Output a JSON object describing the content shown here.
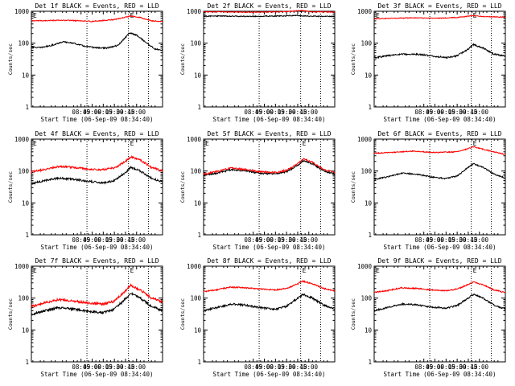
{
  "colors": {
    "events": "#000000",
    "lld": "#ff0000",
    "axes": "#000000",
    "background": "#ffffff"
  },
  "chart_data": [
    {
      "type": "line",
      "title": "Det 1f BLACK = Events, RED = LLD",
      "xlabel": "Start Time (06-Sep-09 08:34:40)",
      "ylabel": "Counts/sec",
      "yscale": "log",
      "ylim": [
        1,
        1000
      ],
      "xlim": [
        "07:38",
        "10:35"
      ],
      "x_ticks": [
        "08:45",
        "09:00",
        "09:15",
        "09:30",
        "09:45",
        "10:00"
      ],
      "y_ticks": [
        "1",
        "10",
        "100",
        "1000"
      ],
      "markers": [
        {
          "time": "08:53",
          "label": ""
        },
        {
          "time": "09:49",
          "label": "E"
        },
        {
          "time": "10:16",
          "label": ""
        }
      ],
      "corner_label": "E",
      "series": [
        {
          "name": "Events",
          "color": "#000000",
          "noise": 0.02,
          "x": [
            "07:38",
            "07:50",
            "08:05",
            "08:20",
            "08:35",
            "08:50",
            "09:05",
            "09:20",
            "09:35",
            "09:45",
            "09:50",
            "10:00",
            "10:15",
            "10:25",
            "10:35"
          ],
          "y": [
            75,
            72,
            85,
            110,
            100,
            80,
            72,
            70,
            85,
            150,
            210,
            180,
            95,
            65,
            60
          ]
        },
        {
          "name": "LLD",
          "color": "#ff0000",
          "noise": 0.015,
          "x": [
            "07:38",
            "08:00",
            "08:30",
            "09:00",
            "09:30",
            "09:45",
            "09:52",
            "10:05",
            "10:20",
            "10:35"
          ],
          "y": [
            500,
            510,
            520,
            480,
            550,
            650,
            720,
            640,
            500,
            480
          ]
        }
      ]
    },
    {
      "type": "line",
      "title": "Det 2f BLACK = Events, RED = LLD",
      "xlabel": "Start Time (06-Sep-09 08:34:40)",
      "ylabel": "Counts/sec",
      "yscale": "log",
      "ylim": [
        1,
        1000
      ],
      "xlim": [
        "07:38",
        "10:35"
      ],
      "x_ticks": [
        "08:45",
        "09:00",
        "09:15",
        "09:30",
        "09:45",
        "10:00"
      ],
      "y_ticks": [
        "1",
        "10",
        "100",
        "1000"
      ],
      "markers": [
        {
          "time": "08:53",
          "label": ""
        },
        {
          "time": "09:49",
          "label": ""
        },
        {
          "time": "10:16",
          "label": ""
        }
      ],
      "corner_label": "",
      "series": [
        {
          "name": "Events",
          "color": "#000000",
          "noise": 0.015,
          "x": [
            "07:38",
            "08:00",
            "08:30",
            "09:00",
            "09:30",
            "09:45",
            "10:00",
            "10:35"
          ],
          "y": [
            700,
            710,
            690,
            700,
            720,
            740,
            700,
            690
          ]
        },
        {
          "name": "LLD",
          "color": "#ff0000",
          "noise": 0.012,
          "x": [
            "07:38",
            "08:00",
            "08:30",
            "09:00",
            "09:30",
            "09:50",
            "10:05",
            "10:35"
          ],
          "y": [
            950,
            960,
            940,
            950,
            980,
            1050,
            960,
            950
          ]
        }
      ]
    },
    {
      "type": "line",
      "title": "Det 3f BLACK = Events, RED = LLD",
      "xlabel": "Start Time (06-Sep-09 08:34:40)",
      "ylabel": "Counts/sec",
      "yscale": "log",
      "ylim": [
        1,
        1000
      ],
      "xlim": [
        "07:38",
        "10:35"
      ],
      "x_ticks": [
        "08:45",
        "09:00",
        "09:15",
        "09:30",
        "09:45",
        "10:00"
      ],
      "y_ticks": [
        "1",
        "10",
        "100",
        "1000"
      ],
      "markers": [
        {
          "time": "08:53",
          "label": ""
        },
        {
          "time": "09:49",
          "label": "E"
        },
        {
          "time": "10:16",
          "label": ""
        }
      ],
      "corner_label": "E",
      "series": [
        {
          "name": "Events",
          "color": "#000000",
          "noise": 0.025,
          "x": [
            "07:38",
            "07:55",
            "08:15",
            "08:35",
            "08:55",
            "09:15",
            "09:30",
            "09:45",
            "09:52",
            "10:05",
            "10:20",
            "10:35"
          ],
          "y": [
            35,
            40,
            45,
            45,
            40,
            35,
            40,
            65,
            90,
            70,
            45,
            40
          ]
        },
        {
          "name": "LLD",
          "color": "#ff0000",
          "noise": 0.012,
          "x": [
            "07:38",
            "08:00",
            "08:30",
            "09:00",
            "09:30",
            "09:50",
            "10:10",
            "10:35"
          ],
          "y": [
            580,
            600,
            620,
            600,
            640,
            720,
            680,
            650
          ]
        }
      ]
    },
    {
      "type": "line",
      "title": "Det 4f BLACK = Events, RED = LLD",
      "xlabel": "Start Time (06-Sep-09 08:34:40)",
      "ylabel": "Counts/sec",
      "yscale": "log",
      "ylim": [
        1,
        1000
      ],
      "xlim": [
        "07:38",
        "10:35"
      ],
      "x_ticks": [
        "08:45",
        "09:00",
        "09:15",
        "09:30",
        "09:45",
        "10:00"
      ],
      "y_ticks": [
        "1",
        "10",
        "100",
        "1000"
      ],
      "markers": [
        {
          "time": "08:53",
          "label": ""
        },
        {
          "time": "09:49",
          "label": "E"
        },
        {
          "time": "10:16",
          "label": ""
        }
      ],
      "corner_label": "E",
      "series": [
        {
          "name": "Events",
          "color": "#000000",
          "noise": 0.03,
          "x": [
            "07:38",
            "07:55",
            "08:15",
            "08:35",
            "08:55",
            "09:15",
            "09:30",
            "09:45",
            "09:52",
            "10:05",
            "10:20",
            "10:35"
          ],
          "y": [
            40,
            50,
            60,
            55,
            48,
            42,
            50,
            90,
            130,
            100,
            60,
            45
          ]
        },
        {
          "name": "LLD",
          "color": "#ff0000",
          "noise": 0.03,
          "x": [
            "07:38",
            "07:55",
            "08:15",
            "08:35",
            "08:55",
            "09:15",
            "09:30",
            "09:45",
            "09:52",
            "10:05",
            "10:20",
            "10:35"
          ],
          "y": [
            95,
            110,
            140,
            130,
            115,
            110,
            125,
            200,
            280,
            220,
            130,
            100
          ]
        }
      ]
    },
    {
      "type": "line",
      "title": "Det 5f BLACK = Events, RED = LLD",
      "xlabel": "Start Time (06-Sep-09 08:34:40)",
      "ylabel": "Counts/sec",
      "yscale": "log",
      "ylim": [
        1,
        1000
      ],
      "xlim": [
        "07:38",
        "10:35"
      ],
      "x_ticks": [
        "08:45",
        "09:00",
        "09:15",
        "09:30",
        "09:45",
        "10:00"
      ],
      "y_ticks": [
        "1",
        "10",
        "100",
        "1000"
      ],
      "markers": [
        {
          "time": "08:53",
          "label": ""
        },
        {
          "time": "09:49",
          "label": "E"
        },
        {
          "time": "10:16",
          "label": ""
        }
      ],
      "corner_label": "E",
      "series": [
        {
          "name": "Events",
          "color": "#000000",
          "noise": 0.025,
          "x": [
            "07:38",
            "07:55",
            "08:15",
            "08:35",
            "08:55",
            "09:15",
            "09:30",
            "09:45",
            "09:52",
            "10:05",
            "10:20",
            "10:35"
          ],
          "y": [
            75,
            85,
            110,
            100,
            85,
            80,
            95,
            150,
            210,
            170,
            100,
            80
          ]
        },
        {
          "name": "LLD",
          "color": "#ff0000",
          "noise": 0.025,
          "x": [
            "07:38",
            "07:55",
            "08:15",
            "08:35",
            "08:55",
            "09:15",
            "09:30",
            "09:45",
            "09:52",
            "10:05",
            "10:20",
            "10:35"
          ],
          "y": [
            80,
            95,
            125,
            110,
            95,
            90,
            105,
            170,
            240,
            190,
            110,
            90
          ]
        }
      ]
    },
    {
      "type": "line",
      "title": "Det 6f BLACK = Events, RED = LLD",
      "xlabel": "Start Time (06-Sep-09 08:34:40)",
      "ylabel": "Counts/sec",
      "yscale": "log",
      "ylim": [
        1,
        1000
      ],
      "xlim": [
        "07:38",
        "10:35"
      ],
      "x_ticks": [
        "08:45",
        "09:00",
        "09:15",
        "09:30",
        "09:45",
        "10:00"
      ],
      "y_ticks": [
        "1",
        "10",
        "100",
        "1000"
      ],
      "markers": [
        {
          "time": "08:53",
          "label": ""
        },
        {
          "time": "09:49",
          "label": "E"
        },
        {
          "time": "10:16",
          "label": ""
        }
      ],
      "corner_label": "",
      "series": [
        {
          "name": "Events",
          "color": "#000000",
          "noise": 0.02,
          "x": [
            "07:38",
            "07:55",
            "08:15",
            "08:35",
            "08:55",
            "09:15",
            "09:30",
            "09:45",
            "09:52",
            "10:05",
            "10:20",
            "10:35"
          ],
          "y": [
            55,
            65,
            85,
            80,
            65,
            58,
            70,
            130,
            170,
            130,
            80,
            60
          ]
        },
        {
          "name": "LLD",
          "color": "#ff0000",
          "noise": 0.015,
          "x": [
            "07:38",
            "08:00",
            "08:30",
            "09:00",
            "09:30",
            "09:45",
            "09:52",
            "10:10",
            "10:35"
          ],
          "y": [
            360,
            380,
            420,
            380,
            400,
            500,
            580,
            450,
            330
          ]
        }
      ]
    },
    {
      "type": "line",
      "title": "Det 7f BLACK = Events, RED = LLD",
      "xlabel": "Start Time (06-Sep-09 08:34:40)",
      "ylabel": "Counts/sec",
      "yscale": "log",
      "ylim": [
        1,
        1000
      ],
      "xlim": [
        "07:38",
        "10:35"
      ],
      "x_ticks": [
        "08:45",
        "09:00",
        "09:15",
        "09:30",
        "09:45",
        "10:00"
      ],
      "y_ticks": [
        "1",
        "10",
        "100",
        "1000"
      ],
      "markers": [
        {
          "time": "08:53",
          "label": ""
        },
        {
          "time": "09:49",
          "label": "E"
        },
        {
          "time": "10:16",
          "label": ""
        }
      ],
      "corner_label": "E",
      "series": [
        {
          "name": "Events",
          "color": "#000000",
          "noise": 0.035,
          "x": [
            "07:38",
            "07:55",
            "08:15",
            "08:35",
            "08:55",
            "09:15",
            "09:30",
            "09:45",
            "09:52",
            "10:05",
            "10:20",
            "10:35"
          ],
          "y": [
            30,
            40,
            50,
            45,
            38,
            35,
            45,
            95,
            140,
            100,
            55,
            40
          ]
        },
        {
          "name": "LLD",
          "color": "#ff0000",
          "noise": 0.035,
          "x": [
            "07:38",
            "07:55",
            "08:15",
            "08:35",
            "08:55",
            "09:15",
            "09:30",
            "09:45",
            "09:52",
            "10:05",
            "10:20",
            "10:35"
          ],
          "y": [
            55,
            70,
            90,
            80,
            70,
            65,
            80,
            170,
            250,
            180,
            100,
            75
          ]
        }
      ]
    },
    {
      "type": "line",
      "title": "Det 8f BLACK = Events, RED = LLD",
      "xlabel": "Start Time (06-Sep-09 08:34:40)",
      "ylabel": "Counts/sec",
      "yscale": "log",
      "ylim": [
        1,
        1000
      ],
      "xlim": [
        "07:38",
        "10:35"
      ],
      "x_ticks": [
        "08:45",
        "09:00",
        "09:15",
        "09:30",
        "09:45",
        "10:00"
      ],
      "y_ticks": [
        "1",
        "10",
        "100",
        "1000"
      ],
      "markers": [
        {
          "time": "08:53",
          "label": ""
        },
        {
          "time": "09:49",
          "label": "E"
        },
        {
          "time": "10:16",
          "label": ""
        }
      ],
      "corner_label": "",
      "series": [
        {
          "name": "Events",
          "color": "#000000",
          "noise": 0.03,
          "x": [
            "07:38",
            "07:55",
            "08:15",
            "08:35",
            "08:55",
            "09:15",
            "09:30",
            "09:45",
            "09:52",
            "10:05",
            "10:20",
            "10:35"
          ],
          "y": [
            40,
            50,
            65,
            60,
            50,
            45,
            55,
            100,
            130,
            100,
            60,
            45
          ]
        },
        {
          "name": "LLD",
          "color": "#ff0000",
          "noise": 0.02,
          "x": [
            "07:38",
            "07:55",
            "08:15",
            "08:35",
            "08:55",
            "09:15",
            "09:30",
            "09:45",
            "09:52",
            "10:05",
            "10:20",
            "10:35"
          ],
          "y": [
            160,
            180,
            220,
            210,
            190,
            180,
            200,
            280,
            340,
            280,
            200,
            170
          ]
        }
      ]
    },
    {
      "type": "line",
      "title": "Det 9f BLACK = Events, RED = LLD",
      "xlabel": "Start Time (06-Sep-09 08:34:40)",
      "ylabel": "Counts/sec",
      "yscale": "log",
      "ylim": [
        1,
        1000
      ],
      "xlim": [
        "07:38",
        "10:35"
      ],
      "x_ticks": [
        "08:45",
        "09:00",
        "09:15",
        "09:30",
        "09:45",
        "10:00"
      ],
      "y_ticks": [
        "1",
        "10",
        "100",
        "1000"
      ],
      "markers": [
        {
          "time": "08:53",
          "label": ""
        },
        {
          "time": "09:49",
          "label": "E"
        },
        {
          "time": "10:16",
          "label": ""
        }
      ],
      "corner_label": "E",
      "series": [
        {
          "name": "Events",
          "color": "#000000",
          "noise": 0.025,
          "x": [
            "07:38",
            "07:55",
            "08:15",
            "08:35",
            "08:55",
            "09:15",
            "09:30",
            "09:45",
            "09:52",
            "10:05",
            "10:20",
            "10:35"
          ],
          "y": [
            40,
            50,
            65,
            62,
            52,
            48,
            58,
            100,
            130,
            100,
            60,
            45
          ]
        },
        {
          "name": "LLD",
          "color": "#ff0000",
          "noise": 0.02,
          "x": [
            "07:38",
            "07:55",
            "08:15",
            "08:35",
            "08:55",
            "09:15",
            "09:30",
            "09:45",
            "09:52",
            "10:05",
            "10:20",
            "10:35"
          ],
          "y": [
            150,
            170,
            210,
            200,
            180,
            170,
            190,
            270,
            320,
            260,
            180,
            150
          ]
        }
      ]
    }
  ]
}
